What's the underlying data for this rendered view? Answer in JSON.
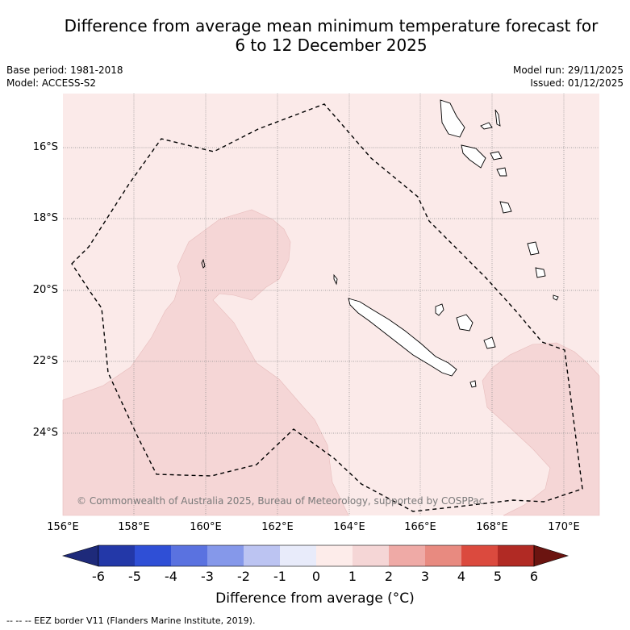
{
  "header": {
    "title_line1": "Difference from average mean minimum temperature forecast for",
    "title_line2": "6 to 12 December 2025",
    "base_period": "Base period: 1981-2018",
    "model": "Model: ACCESS-S2",
    "model_run": "Model run: 29/11/2025",
    "issued": "Issued: 01/12/2025"
  },
  "map": {
    "lon_range": [
      156,
      171
    ],
    "lat_range": [
      -26.5,
      -14.5
    ],
    "x_ticks": [
      "156°E",
      "158°E",
      "160°E",
      "162°E",
      "164°E",
      "166°E",
      "168°E",
      "170°E"
    ],
    "y_ticks": [
      "16°S",
      "18°S",
      "20°S",
      "22°S",
      "24°S"
    ],
    "background_category": "0 to 1",
    "shaded_category": "1 to 2",
    "copyright": "© Commonwealth of Australia 2025, Bureau of Meteorology, supported by COSPPac"
  },
  "colorbar": {
    "title": "Difference from average (°C)",
    "ticks": [
      "-6",
      "-5",
      "-4",
      "-3",
      "-2",
      "-1",
      "0",
      "1",
      "2",
      "3",
      "4",
      "5",
      "6"
    ],
    "colors": [
      "#1e2a7a",
      "#2338a8",
      "#2f4fd6",
      "#5a72e0",
      "#8598ea",
      "#bcc4f2",
      "#e8ebfa",
      "#fdecea",
      "#f5d6d6",
      "#efaaa6",
      "#e88a80",
      "#db4a3e",
      "#b12a24",
      "#6b1410"
    ]
  },
  "legend": {
    "text": "--  --  -- EEZ border V11 (Flanders Marine Institute, 2019)."
  }
}
